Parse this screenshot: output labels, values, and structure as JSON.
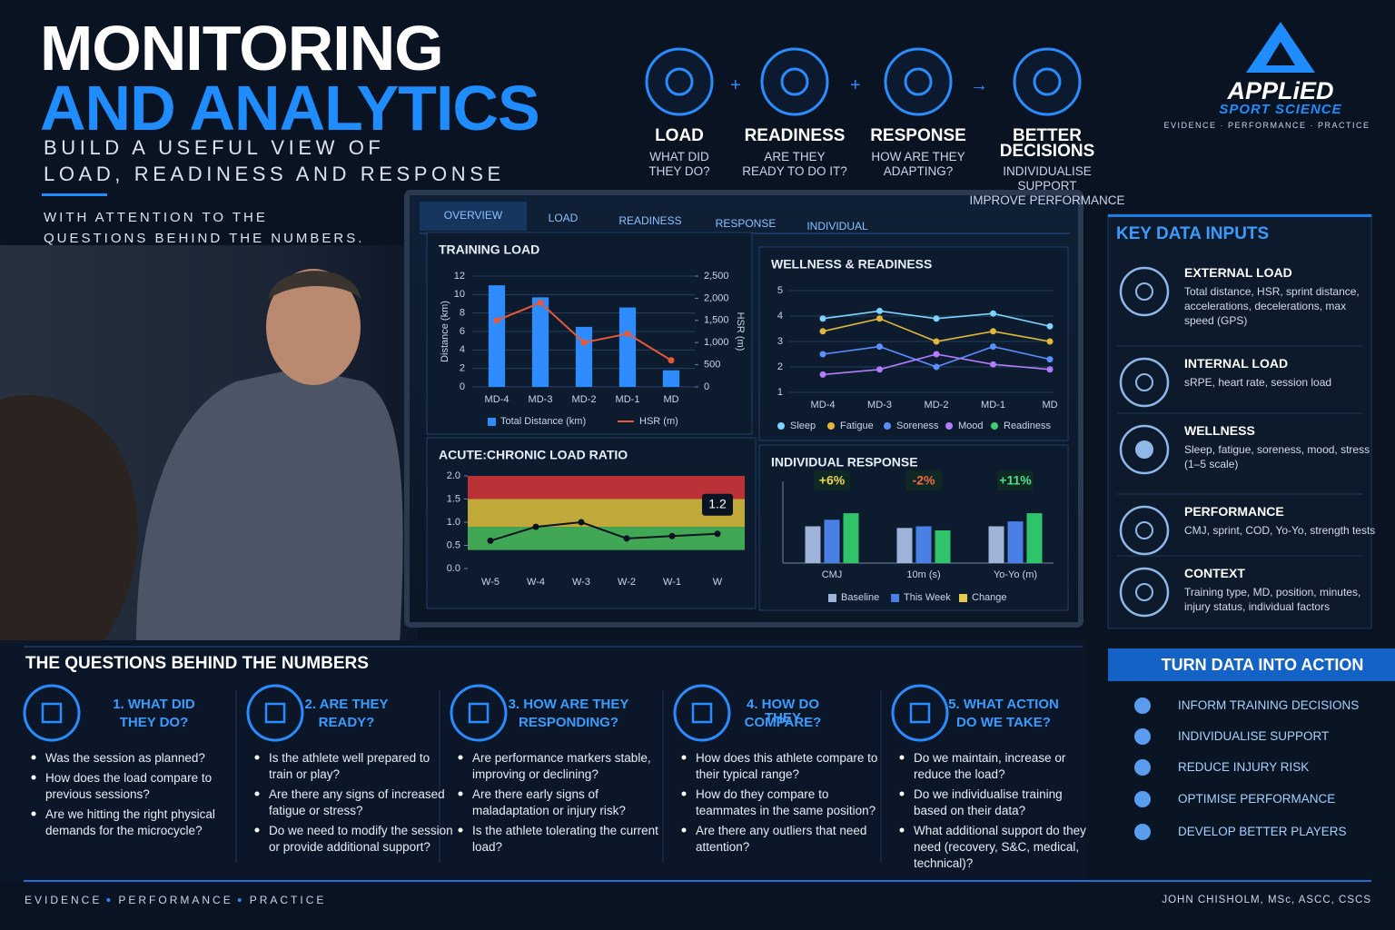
{
  "header": {
    "title_line1": "MONITORING",
    "title_line2": "AND ANALYTICS",
    "subtitle": [
      "BUILD A USEFUL VIEW OF",
      "LOAD, READINESS AND RESPONSE"
    ],
    "note": [
      "WITH ATTENTION TO THE",
      "QUESTIONS BEHIND THE NUMBERS."
    ]
  },
  "flow": [
    {
      "label": "LOAD",
      "text": [
        "WHAT DID",
        "THEY DO?"
      ]
    },
    {
      "label": "READINESS",
      "text": [
        "ARE THEY",
        "READY TO DO IT?"
      ]
    },
    {
      "label": "RESPONSE",
      "text": [
        "HOW ARE THEY",
        "ADAPTING?"
      ]
    },
    {
      "label": "BETTER DECISIONS",
      "text": [
        "INDIVIDUALISE",
        "SUPPORT",
        "IMPROVE PERFORMANCE"
      ]
    }
  ],
  "flow_ops": [
    "+",
    "+",
    "→"
  ],
  "logo": {
    "name": "APPLiED",
    "sub": "SPORT SCIENCE",
    "tagline": "EVIDENCE · PERFORMANCE · PRACTICE"
  },
  "dashboard": {
    "tabs": [
      "OVERVIEW",
      "LOAD",
      "READINESS",
      "RESPONSE",
      "INDIVIDUAL"
    ],
    "charts": [
      {
        "type": "bar_line",
        "title": "TRAINING LOAD",
        "categories": [
          "MD-4",
          "MD-3",
          "MD-2",
          "MD-1",
          "MD"
        ],
        "series": [
          {
            "name": "Total Distance (km)",
            "color": "#2f8cff",
            "values": [
              11,
              9.7,
              6.5,
              8.6,
              1.8
            ]
          },
          {
            "name": "HSR (m)",
            "color": "#e8583a",
            "axis": "y2",
            "values": [
              1500,
              1900,
              1000,
              1200,
              600
            ]
          }
        ],
        "ylabel": "Distance (km)",
        "y2label": "HSR (m)",
        "ylim": [
          0,
          12
        ],
        "yticks": [
          0,
          2,
          4,
          6,
          8,
          10,
          12
        ],
        "y2lim": [
          0,
          2500
        ],
        "y2ticks": [
          0,
          500,
          {
            "value": 1000,
            "label": "1,000"
          },
          {
            "value": 1500,
            "label": "1,500"
          },
          {
            "value": 2000,
            "label": "2,000"
          },
          {
            "value": 2500,
            "label": "2,500"
          }
        ],
        "grid": true
      },
      {
        "type": "line",
        "title": "WELLNESS & READINESS",
        "categories": [
          "MD-4",
          "MD-3",
          "MD-2",
          "MD-1",
          "MD"
        ],
        "series": [
          {
            "name": "Sleep",
            "color": "#7fd3ff",
            "values": [
              3.9,
              4.2,
              3.9,
              4.1,
              3.6
            ]
          },
          {
            "name": "Fatigue",
            "color": "#e0b73a",
            "values": [
              3.4,
              3.9,
              3.0,
              3.4,
              3.0
            ]
          },
          {
            "name": "Soreness",
            "color": "#5b8fff",
            "values": [
              2.5,
              2.8,
              2.0,
              2.8,
              2.3
            ]
          },
          {
            "name": "Mood",
            "color": "#b27cff",
            "values": [
              1.7,
              1.9,
              2.5,
              2.1,
              1.9
            ]
          },
          {
            "name": "Readiness",
            "color": "#3ecf6e",
            "values": [
              null,
              null,
              null,
              null,
              null
            ]
          }
        ],
        "ylim": [
          1,
          5
        ],
        "yticks": [
          1,
          2,
          3,
          4,
          5
        ],
        "grid": true
      },
      {
        "type": "zone_line",
        "title": "ACUTE:CHRONIC LOAD RATIO",
        "categories": [
          "W-5",
          "W-4",
          "W-3",
          "W-2",
          "W-1",
          "W"
        ],
        "values": [
          0.6,
          0.9,
          1.0,
          0.65,
          0.7,
          0.75
        ],
        "color": "#0a1322",
        "zones": [
          {
            "from": 1.5,
            "to": 2.0,
            "color": "#d9363a"
          },
          {
            "from": 0.9,
            "to": 1.5,
            "color": "#e0c23a"
          },
          {
            "from": 0.4,
            "to": 0.9,
            "color": "#4cbf5c"
          }
        ],
        "annotation": "1.2",
        "ylim": [
          0,
          2
        ],
        "yticks": [
          {
            "value": 0,
            "label": "0.0"
          },
          {
            "value": 0.5,
            "label": "0.5"
          },
          {
            "value": 1,
            "label": "1.0"
          },
          {
            "value": 1.5,
            "label": "1.5"
          },
          {
            "value": 2,
            "label": "2.0"
          }
        ]
      },
      {
        "type": "grouped_bar",
        "title": "INDIVIDUAL RESPONSE",
        "categories": [
          "CMJ",
          "10m (s)",
          "Yo-Yo (m)"
        ],
        "series": [
          {
            "name": "Baseline",
            "color": "#9fb4d8",
            "values": [
              45,
              43,
              45
            ]
          },
          {
            "name": "This Week",
            "color": "#4a7fe6",
            "values": [
              53,
              45,
              51
            ]
          },
          {
            "name": "Change",
            "color": "#2fc46a",
            "legend_color": "#e6c84a",
            "values": [
              61,
              40,
              61
            ]
          }
        ],
        "change_labels": [
          "+6%",
          "-2%",
          "+11%"
        ],
        "ylim": [
          0,
          100
        ]
      }
    ]
  },
  "key_inputs": {
    "title": "KEY DATA INPUTS",
    "items": [
      {
        "title": "EXTERNAL LOAD",
        "text": "Total distance, HSR, sprint distance, accelerations, decelerations, max speed (GPS)"
      },
      {
        "title": "INTERNAL LOAD",
        "text": "sRPE, heart rate, session load"
      },
      {
        "title": "WELLNESS",
        "text": "Sleep, fatigue, soreness, mood, stress (1–5 scale)"
      },
      {
        "title": "PERFORMANCE",
        "text": "CMJ, sprint, COD, Yo-Yo, strength tests"
      },
      {
        "title": "CONTEXT",
        "text": "Training type, MD, position, minutes, injury status, individual factors"
      }
    ]
  },
  "questions": {
    "title": "THE QUESTIONS BEHIND THE NUMBERS",
    "items": [
      {
        "title": [
          "1. WHAT DID",
          "THEY DO?"
        ],
        "bullets": [
          "Was the session as planned?",
          "How does the load compare to previous sessions?",
          "Are we hitting the right physical demands for the microcycle?"
        ]
      },
      {
        "title": [
          "2. ARE THEY",
          "READY?"
        ],
        "bullets": [
          "Is the athlete well prepared to train or play?",
          "Are there any signs of increased fatigue or stress?",
          "Do we need to modify the session or provide additional support?"
        ]
      },
      {
        "title": [
          "3. HOW ARE THEY",
          "RESPONDING?"
        ],
        "bullets": [
          "Are performance markers stable, improving or declining?",
          "Are there early signs of maladaptation or injury risk?",
          "Is the athlete tolerating the current load?"
        ]
      },
      {
        "title": [
          "4. HOW DO THEY",
          "COMPARE?"
        ],
        "bullets": [
          "How does this athlete compare to their typical range?",
          "How do they compare to teammates in the same position?",
          "Are there any outliers that need attention?"
        ]
      },
      {
        "title": [
          "5. WHAT ACTION",
          "DO WE TAKE?"
        ],
        "bullets": [
          "Do we maintain, increase or reduce the load?",
          "Do we individualise training based on their data?",
          "What additional support do they need (recovery, S&C, medical, technical)?"
        ]
      }
    ]
  },
  "actions": {
    "title": "TURN DATA INTO ACTION",
    "items": [
      "INFORM TRAINING DECISIONS",
      "INDIVIDUALISE SUPPORT",
      "REDUCE INJURY RISK",
      "OPTIMISE PERFORMANCE",
      "DEVELOP BETTER PLAYERS"
    ]
  },
  "footer": {
    "left": [
      "EVIDENCE",
      "PERFORMANCE",
      "PRACTICE"
    ],
    "right": "JOHN CHISHOLM, MSc, ASCC, CSCS"
  }
}
